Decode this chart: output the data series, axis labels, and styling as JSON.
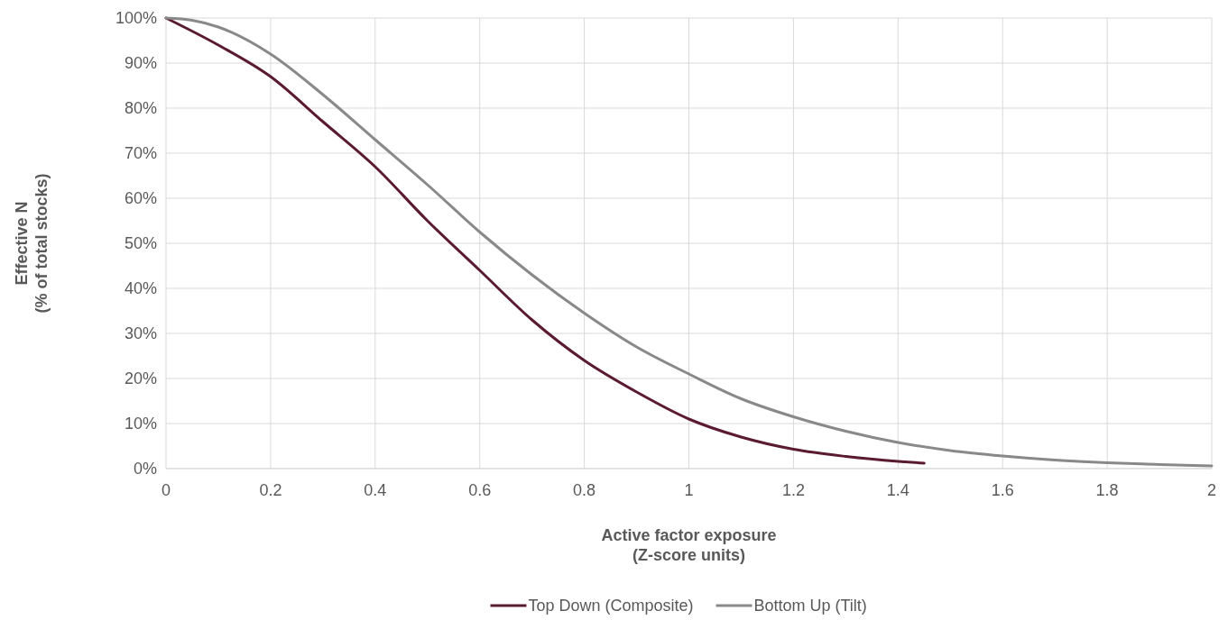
{
  "chart_data": {
    "type": "line",
    "xlabel": "Active factor exposure\n(Z-score units)",
    "ylabel": "Effective N\n(% of total stocks)",
    "xlim": [
      0,
      2
    ],
    "xticks": [
      0,
      0.2,
      0.4,
      0.6,
      0.8,
      1,
      1.2,
      1.4,
      1.6,
      1.8,
      2
    ],
    "ylim": [
      0,
      100
    ],
    "yticks": [
      {
        "value": 0,
        "label": "0%"
      },
      {
        "value": 10,
        "label": "10%"
      },
      {
        "value": 20,
        "label": "20%"
      },
      {
        "value": 30,
        "label": "30%"
      },
      {
        "value": 40,
        "label": "40%"
      },
      {
        "value": 50,
        "label": "50%"
      },
      {
        "value": 60,
        "label": "60%"
      },
      {
        "value": 70,
        "label": "70%"
      },
      {
        "value": 80,
        "label": "80%"
      },
      {
        "value": 90,
        "label": "90%"
      },
      {
        "value": 100,
        "label": "100%"
      }
    ],
    "grid": true,
    "legend": "bottom",
    "marker": "none",
    "line_style": "solid",
    "series": [
      {
        "name": "Top Down (Composite)",
        "color": "#5a1a32",
        "x": [
          0,
          0.1,
          0.2,
          0.3,
          0.4,
          0.5,
          0.6,
          0.7,
          0.8,
          0.9,
          1,
          1.1,
          1.2,
          1.3,
          1.4,
          1.45
        ],
        "values": [
          100,
          94,
          87,
          77,
          67,
          55,
          44,
          33,
          24,
          17,
          11,
          7,
          4.3,
          2.7,
          1.6,
          1.2
        ]
      },
      {
        "name": "Bottom Up (Tilt)",
        "color": "#898989",
        "x": [
          0,
          0.05,
          0.1,
          0.2,
          0.3,
          0.4,
          0.5,
          0.6,
          0.7,
          0.8,
          0.9,
          1,
          1.1,
          1.2,
          1.3,
          1.4,
          1.5,
          1.6,
          1.7,
          1.8,
          1.9,
          2
        ],
        "values": [
          100,
          99.5,
          98,
          92,
          83,
          73,
          63,
          52.5,
          43,
          34.5,
          27,
          21,
          15.5,
          11.5,
          8.3,
          5.8,
          4,
          2.8,
          1.9,
          1.3,
          0.9,
          0.6
        ]
      }
    ]
  }
}
